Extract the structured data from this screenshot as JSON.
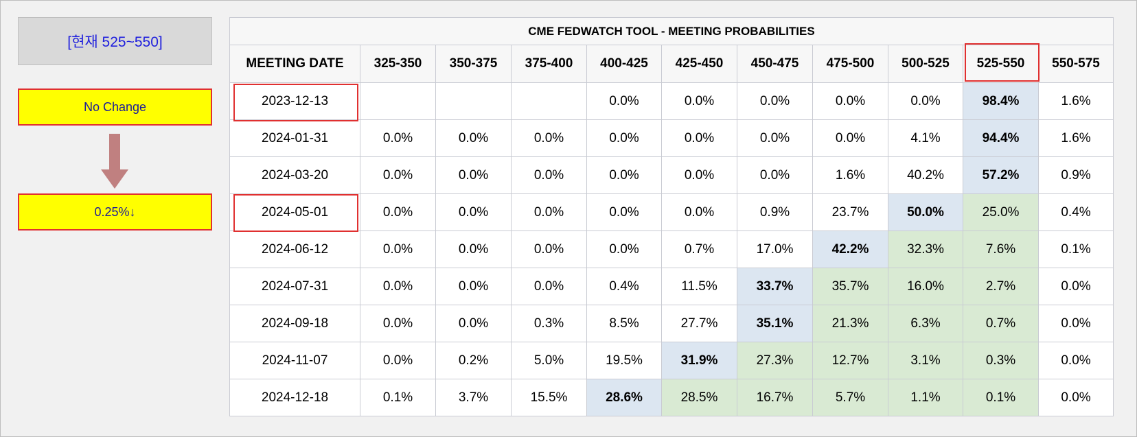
{
  "current_label": "[현재 525~550]",
  "no_change_label": "No Change",
  "cut_label": "0.25%↓",
  "colors": {
    "highlight_blue": "#dce6f1",
    "highlight_green": "#d9ead3",
    "callout_yellow": "#ffff00",
    "marker_red": "#e03030",
    "arrow": "#c08080"
  },
  "icons": {
    "arrow": "down-arrow-icon"
  },
  "table": {
    "title": "CME FEDWATCH TOOL - MEETING PROBABILITIES",
    "headers": [
      "MEETING DATE",
      "325-350",
      "350-375",
      "375-400",
      "400-425",
      "425-450",
      "450-475",
      "475-500",
      "500-525",
      "525-550",
      "550-575"
    ],
    "rows": [
      {
        "date": "2023-12-13",
        "cells": [
          {
            "v": "",
            "s": ""
          },
          {
            "v": "",
            "s": ""
          },
          {
            "v": "",
            "s": ""
          },
          {
            "v": "0.0%",
            "s": ""
          },
          {
            "v": "0.0%",
            "s": ""
          },
          {
            "v": "0.0%",
            "s": ""
          },
          {
            "v": "0.0%",
            "s": ""
          },
          {
            "v": "0.0%",
            "s": ""
          },
          {
            "v": "98.4%",
            "s": "blue bold"
          },
          {
            "v": "1.6%",
            "s": ""
          }
        ]
      },
      {
        "date": "2024-01-31",
        "cells": [
          {
            "v": "0.0%",
            "s": ""
          },
          {
            "v": "0.0%",
            "s": ""
          },
          {
            "v": "0.0%",
            "s": ""
          },
          {
            "v": "0.0%",
            "s": ""
          },
          {
            "v": "0.0%",
            "s": ""
          },
          {
            "v": "0.0%",
            "s": ""
          },
          {
            "v": "0.0%",
            "s": ""
          },
          {
            "v": "4.1%",
            "s": ""
          },
          {
            "v": "94.4%",
            "s": "blue bold"
          },
          {
            "v": "1.6%",
            "s": ""
          }
        ]
      },
      {
        "date": "2024-03-20",
        "cells": [
          {
            "v": "0.0%",
            "s": ""
          },
          {
            "v": "0.0%",
            "s": ""
          },
          {
            "v": "0.0%",
            "s": ""
          },
          {
            "v": "0.0%",
            "s": ""
          },
          {
            "v": "0.0%",
            "s": ""
          },
          {
            "v": "0.0%",
            "s": ""
          },
          {
            "v": "1.6%",
            "s": ""
          },
          {
            "v": "40.2%",
            "s": ""
          },
          {
            "v": "57.2%",
            "s": "blue bold"
          },
          {
            "v": "0.9%",
            "s": ""
          }
        ]
      },
      {
        "date": "2024-05-01",
        "cells": [
          {
            "v": "0.0%",
            "s": ""
          },
          {
            "v": "0.0%",
            "s": ""
          },
          {
            "v": "0.0%",
            "s": ""
          },
          {
            "v": "0.0%",
            "s": ""
          },
          {
            "v": "0.0%",
            "s": ""
          },
          {
            "v": "0.9%",
            "s": ""
          },
          {
            "v": "23.7%",
            "s": ""
          },
          {
            "v": "50.0%",
            "s": "blue bold"
          },
          {
            "v": "25.0%",
            "s": "green"
          },
          {
            "v": "0.4%",
            "s": ""
          }
        ]
      },
      {
        "date": "2024-06-12",
        "cells": [
          {
            "v": "0.0%",
            "s": ""
          },
          {
            "v": "0.0%",
            "s": ""
          },
          {
            "v": "0.0%",
            "s": ""
          },
          {
            "v": "0.0%",
            "s": ""
          },
          {
            "v": "0.7%",
            "s": ""
          },
          {
            "v": "17.0%",
            "s": ""
          },
          {
            "v": "42.2%",
            "s": "blue bold"
          },
          {
            "v": "32.3%",
            "s": "green"
          },
          {
            "v": "7.6%",
            "s": "green"
          },
          {
            "v": "0.1%",
            "s": ""
          }
        ]
      },
      {
        "date": "2024-07-31",
        "cells": [
          {
            "v": "0.0%",
            "s": ""
          },
          {
            "v": "0.0%",
            "s": ""
          },
          {
            "v": "0.0%",
            "s": ""
          },
          {
            "v": "0.4%",
            "s": ""
          },
          {
            "v": "11.5%",
            "s": ""
          },
          {
            "v": "33.7%",
            "s": "blue bold"
          },
          {
            "v": "35.7%",
            "s": "green"
          },
          {
            "v": "16.0%",
            "s": "green"
          },
          {
            "v": "2.7%",
            "s": "green"
          },
          {
            "v": "0.0%",
            "s": ""
          }
        ]
      },
      {
        "date": "2024-09-18",
        "cells": [
          {
            "v": "0.0%",
            "s": ""
          },
          {
            "v": "0.0%",
            "s": ""
          },
          {
            "v": "0.3%",
            "s": ""
          },
          {
            "v": "8.5%",
            "s": ""
          },
          {
            "v": "27.7%",
            "s": ""
          },
          {
            "v": "35.1%",
            "s": "blue bold"
          },
          {
            "v": "21.3%",
            "s": "green"
          },
          {
            "v": "6.3%",
            "s": "green"
          },
          {
            "v": "0.7%",
            "s": "green"
          },
          {
            "v": "0.0%",
            "s": ""
          }
        ]
      },
      {
        "date": "2024-11-07",
        "cells": [
          {
            "v": "0.0%",
            "s": ""
          },
          {
            "v": "0.2%",
            "s": ""
          },
          {
            "v": "5.0%",
            "s": ""
          },
          {
            "v": "19.5%",
            "s": ""
          },
          {
            "v": "31.9%",
            "s": "blue bold"
          },
          {
            "v": "27.3%",
            "s": "green"
          },
          {
            "v": "12.7%",
            "s": "green"
          },
          {
            "v": "3.1%",
            "s": "green"
          },
          {
            "v": "0.3%",
            "s": "green"
          },
          {
            "v": "0.0%",
            "s": ""
          }
        ]
      },
      {
        "date": "2024-12-18",
        "cells": [
          {
            "v": "0.1%",
            "s": ""
          },
          {
            "v": "3.7%",
            "s": ""
          },
          {
            "v": "15.5%",
            "s": ""
          },
          {
            "v": "28.6%",
            "s": "blue bold"
          },
          {
            "v": "28.5%",
            "s": "green"
          },
          {
            "v": "16.7%",
            "s": "green"
          },
          {
            "v": "5.7%",
            "s": "green"
          },
          {
            "v": "1.1%",
            "s": "green"
          },
          {
            "v": "0.1%",
            "s": "green"
          },
          {
            "v": "0.0%",
            "s": ""
          }
        ]
      }
    ]
  }
}
